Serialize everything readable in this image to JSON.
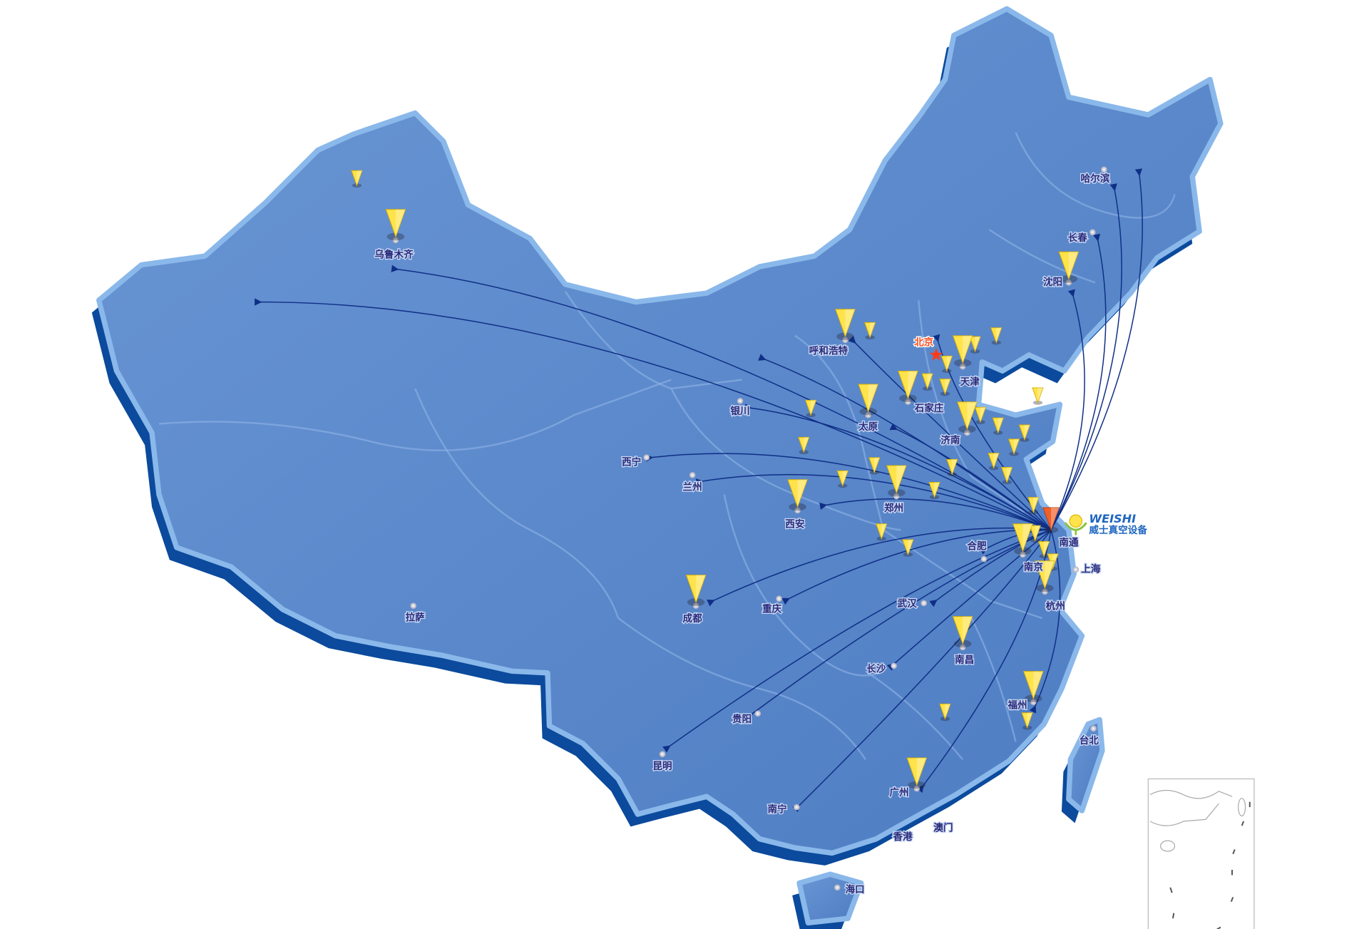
{
  "colors": {
    "land": "#5a86c8",
    "land_edge": "#8ab8ea",
    "shadow": "#0b4a9c",
    "route": "#0f2f86",
    "pin": "#ffe34a",
    "origin_pin": "#f0602a",
    "capital_star": "#ff3a1a",
    "label": "#2a2a7a"
  },
  "logo": {
    "name_en": "WEISHI",
    "name_cn": "威士真空设备"
  },
  "origin": "南通",
  "capital": "北京",
  "cities": [
    {
      "name": "乌鲁木齐",
      "pin": true
    },
    {
      "name": "拉萨",
      "pin": false
    },
    {
      "name": "成都",
      "pin": true
    },
    {
      "name": "重庆",
      "pin": false
    },
    {
      "name": "西宁",
      "pin": false
    },
    {
      "name": "兰州",
      "pin": false
    },
    {
      "name": "银川",
      "pin": false
    },
    {
      "name": "西安",
      "pin": true
    },
    {
      "name": "呼和浩特",
      "pin": true
    },
    {
      "name": "太原",
      "pin": true
    },
    {
      "name": "石家庄",
      "pin": true
    },
    {
      "name": "北京",
      "pin": false
    },
    {
      "name": "天津",
      "pin": true
    },
    {
      "name": "济南",
      "pin": true
    },
    {
      "name": "郑州",
      "pin": true
    },
    {
      "name": "合肥",
      "pin": false
    },
    {
      "name": "南京",
      "pin": true
    },
    {
      "name": "南通",
      "pin": true
    },
    {
      "name": "上海",
      "pin": false
    },
    {
      "name": "杭州",
      "pin": true
    },
    {
      "name": "武汉",
      "pin": false
    },
    {
      "name": "南昌",
      "pin": true
    },
    {
      "name": "长沙",
      "pin": false
    },
    {
      "name": "福州",
      "pin": true
    },
    {
      "name": "贵阳",
      "pin": false
    },
    {
      "name": "昆明",
      "pin": false
    },
    {
      "name": "南宁",
      "pin": false
    },
    {
      "name": "广州",
      "pin": true
    },
    {
      "name": "香港",
      "pin": false
    },
    {
      "name": "澳门",
      "pin": false
    },
    {
      "name": "海口",
      "pin": false
    },
    {
      "name": "台北",
      "pin": false
    },
    {
      "name": "沈阳",
      "pin": true
    },
    {
      "name": "长春",
      "pin": false
    },
    {
      "name": "哈尔滨",
      "pin": false
    }
  ]
}
